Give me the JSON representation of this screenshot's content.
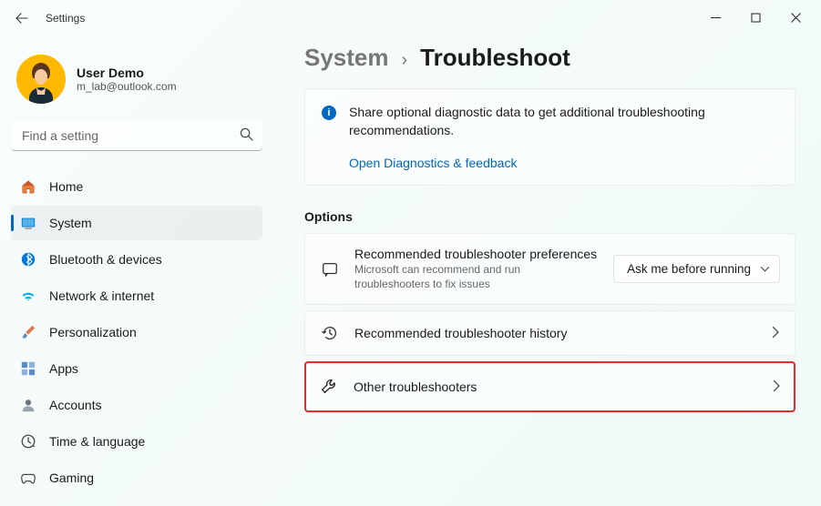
{
  "app_title": "Settings",
  "user": {
    "name": "User Demo",
    "email": "m_lab@outlook.com"
  },
  "search": {
    "placeholder": "Find a setting"
  },
  "nav": {
    "items": [
      {
        "label": "Home",
        "icon": "home",
        "color": "#e67e3c"
      },
      {
        "label": "System",
        "icon": "system",
        "color": "#0078d4",
        "active": true
      },
      {
        "label": "Bluetooth & devices",
        "icon": "bluetooth",
        "color": "#0078d4"
      },
      {
        "label": "Network & internet",
        "icon": "wifi",
        "color": "#00b0ee"
      },
      {
        "label": "Personalization",
        "icon": "brush",
        "color": "#d97b4e"
      },
      {
        "label": "Apps",
        "icon": "apps",
        "color": "#5b8dc9"
      },
      {
        "label": "Accounts",
        "icon": "accounts",
        "color": "#6b7680"
      },
      {
        "label": "Time & language",
        "icon": "time",
        "color": "#4a4a4a"
      },
      {
        "label": "Gaming",
        "icon": "gaming",
        "color": "#4a4a4a"
      }
    ]
  },
  "breadcrumb": {
    "parent": "System",
    "current": "Troubleshoot"
  },
  "info_banner": {
    "text": "Share optional diagnostic data to get additional troubleshooting recommendations.",
    "link": "Open Diagnostics & feedback"
  },
  "options": {
    "heading": "Options",
    "cards": [
      {
        "title": "Recommended troubleshooter preferences",
        "subtitle": "Microsoft can recommend and run troubleshooters to fix issues",
        "dropdown": "Ask me before running",
        "icon": "chat"
      },
      {
        "title": "Recommended troubleshooter history",
        "icon": "history",
        "arrow": true
      },
      {
        "title": "Other troubleshooters",
        "icon": "wrench",
        "arrow": true,
        "highlight": true
      }
    ]
  }
}
